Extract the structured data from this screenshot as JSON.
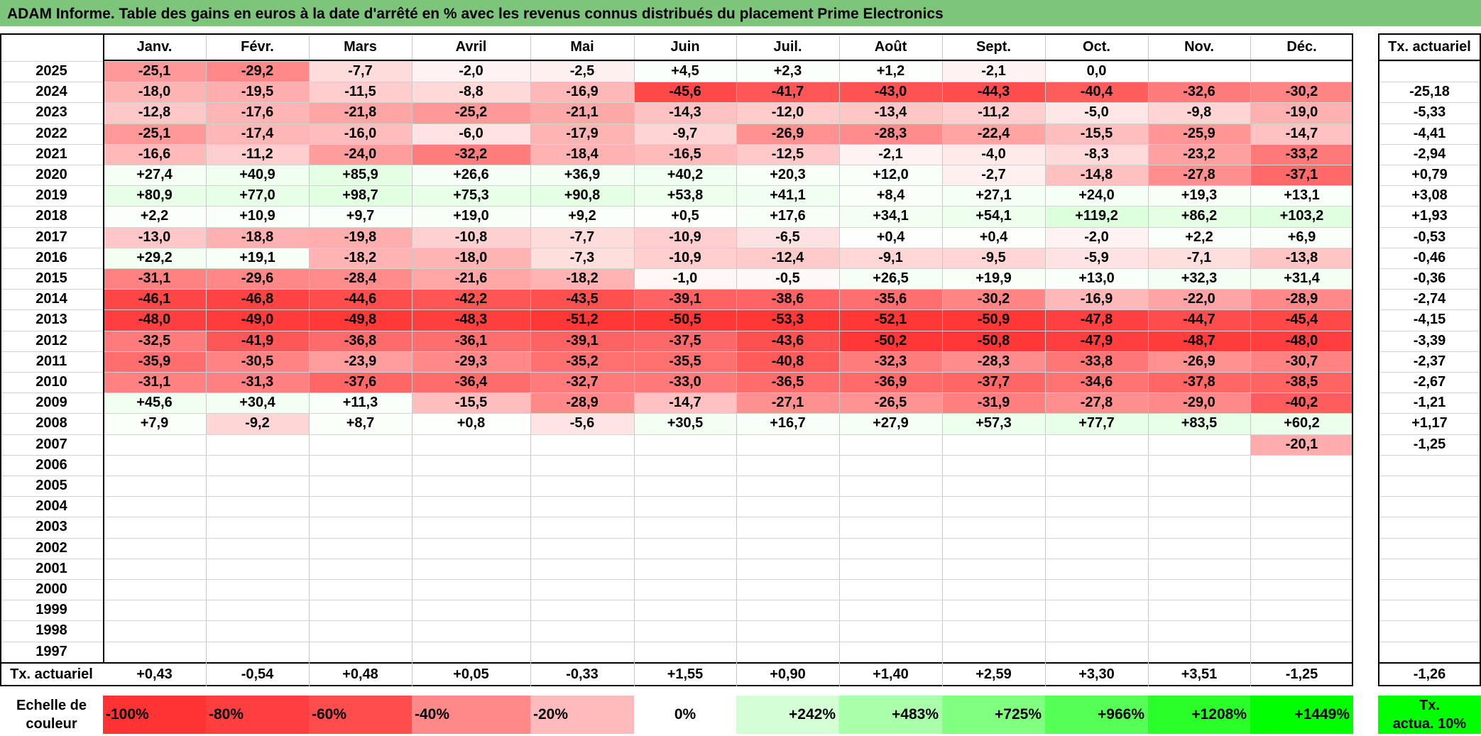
{
  "title": "ADAM Informe. Table des gains en euros à la date d'arrêté en % avec les revenus connus distribués du placement Prime Electronics",
  "months": [
    "Janv.",
    "Févr.",
    "Mars",
    "Avril",
    "Mai",
    "Juin",
    "Juil.",
    "Août",
    "Sept.",
    "Oct.",
    "Nov.",
    "Déc."
  ],
  "rate_header": "Tx. actuariel",
  "rows": [
    {
      "year": "2025",
      "values": [
        "-25,1",
        "-29,2",
        "-7,7",
        "-2,0",
        "-2,5",
        "+4,5",
        "+2,3",
        "+1,2",
        "-2,1",
        "0,0",
        "",
        ""
      ],
      "rate": ""
    },
    {
      "year": "2024",
      "values": [
        "-18,0",
        "-19,5",
        "-11,5",
        "-8,8",
        "-16,9",
        "-45,6",
        "-41,7",
        "-43,0",
        "-44,3",
        "-40,4",
        "-32,6",
        "-30,2"
      ],
      "rate": "-25,18"
    },
    {
      "year": "2023",
      "values": [
        "-12,8",
        "-17,6",
        "-21,8",
        "-25,2",
        "-21,1",
        "-14,3",
        "-12,0",
        "-13,4",
        "-11,2",
        "-5,0",
        "-9,8",
        "-19,0"
      ],
      "rate": "-5,33"
    },
    {
      "year": "2022",
      "values": [
        "-25,1",
        "-17,4",
        "-16,0",
        "-6,0",
        "-17,9",
        "-9,7",
        "-26,9",
        "-28,3",
        "-22,4",
        "-15,5",
        "-25,9",
        "-14,7"
      ],
      "rate": "-4,41"
    },
    {
      "year": "2021",
      "values": [
        "-16,6",
        "-11,2",
        "-24,0",
        "-32,2",
        "-18,4",
        "-16,5",
        "-12,5",
        "-2,1",
        "-4,0",
        "-8,3",
        "-23,2",
        "-33,2"
      ],
      "rate": "-2,94"
    },
    {
      "year": "2020",
      "values": [
        "+27,4",
        "+40,9",
        "+85,9",
        "+26,6",
        "+36,9",
        "+40,2",
        "+20,3",
        "+12,0",
        "-2,7",
        "-14,8",
        "-27,8",
        "-37,1"
      ],
      "rate": "+0,79"
    },
    {
      "year": "2019",
      "values": [
        "+80,9",
        "+77,0",
        "+98,7",
        "+75,3",
        "+90,8",
        "+53,8",
        "+41,1",
        "+8,4",
        "+27,1",
        "+24,0",
        "+19,3",
        "+13,1"
      ],
      "rate": "+3,08"
    },
    {
      "year": "2018",
      "values": [
        "+2,2",
        "+10,9",
        "+9,7",
        "+19,0",
        "+9,2",
        "+0,5",
        "+17,6",
        "+34,1",
        "+54,1",
        "+119,2",
        "+86,2",
        "+103,2"
      ],
      "rate": "+1,93"
    },
    {
      "year": "2017",
      "values": [
        "-13,0",
        "-18,8",
        "-19,8",
        "-10,8",
        "-7,7",
        "-10,9",
        "-6,5",
        "+0,4",
        "+0,4",
        "-2,0",
        "+2,2",
        "+6,9"
      ],
      "rate": "-0,53"
    },
    {
      "year": "2016",
      "values": [
        "+29,2",
        "+19,1",
        "-18,2",
        "-18,0",
        "-7,3",
        "-10,9",
        "-12,4",
        "-9,1",
        "-9,5",
        "-5,9",
        "-7,1",
        "-13,8"
      ],
      "rate": "-0,46"
    },
    {
      "year": "2015",
      "values": [
        "-31,1",
        "-29,6",
        "-28,4",
        "-21,6",
        "-18,2",
        "-1,0",
        "-0,5",
        "+26,5",
        "+19,9",
        "+13,0",
        "+32,3",
        "+31,4"
      ],
      "rate": "-0,36"
    },
    {
      "year": "2014",
      "values": [
        "-46,1",
        "-46,8",
        "-44,6",
        "-42,2",
        "-43,5",
        "-39,1",
        "-38,6",
        "-35,6",
        "-30,2",
        "-16,9",
        "-22,0",
        "-28,9"
      ],
      "rate": "-2,74"
    },
    {
      "year": "2013",
      "values": [
        "-48,0",
        "-49,0",
        "-49,8",
        "-48,3",
        "-51,2",
        "-50,5",
        "-53,3",
        "-52,1",
        "-50,9",
        "-47,8",
        "-44,7",
        "-45,4"
      ],
      "rate": "-4,15"
    },
    {
      "year": "2012",
      "values": [
        "-32,5",
        "-41,9",
        "-36,8",
        "-36,1",
        "-39,1",
        "-37,5",
        "-43,6",
        "-50,2",
        "-50,8",
        "-47,9",
        "-48,7",
        "-48,0"
      ],
      "rate": "-3,39"
    },
    {
      "year": "2011",
      "values": [
        "-35,9",
        "-30,5",
        "-23,9",
        "-29,3",
        "-35,2",
        "-35,5",
        "-40,8",
        "-32,3",
        "-28,3",
        "-33,8",
        "-26,9",
        "-30,7"
      ],
      "rate": "-2,37"
    },
    {
      "year": "2010",
      "values": [
        "-31,1",
        "-31,3",
        "-37,6",
        "-36,4",
        "-32,7",
        "-33,0",
        "-36,5",
        "-36,9",
        "-37,7",
        "-34,6",
        "-37,8",
        "-38,5"
      ],
      "rate": "-2,67"
    },
    {
      "year": "2009",
      "values": [
        "+45,6",
        "+30,4",
        "+11,3",
        "-15,5",
        "-28,9",
        "-14,7",
        "-27,1",
        "-26,5",
        "-31,9",
        "-27,8",
        "-29,0",
        "-40,2"
      ],
      "rate": "-1,21"
    },
    {
      "year": "2008",
      "values": [
        "+7,9",
        "-9,2",
        "+8,7",
        "+0,8",
        "-5,6",
        "+30,5",
        "+16,7",
        "+27,9",
        "+57,3",
        "+77,7",
        "+83,5",
        "+60,2"
      ],
      "rate": "+1,17"
    },
    {
      "year": "2007",
      "values": [
        "",
        "",
        "",
        "",
        "",
        "",
        "",
        "",
        "",
        "",
        "",
        "-20,1"
      ],
      "rate": "-1,25"
    },
    {
      "year": "2006",
      "values": [
        "",
        "",
        "",
        "",
        "",
        "",
        "",
        "",
        "",
        "",
        "",
        ""
      ],
      "rate": ""
    },
    {
      "year": "2005",
      "values": [
        "",
        "",
        "",
        "",
        "",
        "",
        "",
        "",
        "",
        "",
        "",
        ""
      ],
      "rate": ""
    },
    {
      "year": "2004",
      "values": [
        "",
        "",
        "",
        "",
        "",
        "",
        "",
        "",
        "",
        "",
        "",
        ""
      ],
      "rate": ""
    },
    {
      "year": "2003",
      "values": [
        "",
        "",
        "",
        "",
        "",
        "",
        "",
        "",
        "",
        "",
        "",
        ""
      ],
      "rate": ""
    },
    {
      "year": "2002",
      "values": [
        "",
        "",
        "",
        "",
        "",
        "",
        "",
        "",
        "",
        "",
        "",
        ""
      ],
      "rate": ""
    },
    {
      "year": "2001",
      "values": [
        "",
        "",
        "",
        "",
        "",
        "",
        "",
        "",
        "",
        "",
        "",
        ""
      ],
      "rate": ""
    },
    {
      "year": "2000",
      "values": [
        "",
        "",
        "",
        "",
        "",
        "",
        "",
        "",
        "",
        "",
        "",
        ""
      ],
      "rate": ""
    },
    {
      "year": "1999",
      "values": [
        "",
        "",
        "",
        "",
        "",
        "",
        "",
        "",
        "",
        "",
        "",
        ""
      ],
      "rate": ""
    },
    {
      "year": "1998",
      "values": [
        "",
        "",
        "",
        "",
        "",
        "",
        "",
        "",
        "",
        "",
        "",
        ""
      ],
      "rate": ""
    },
    {
      "year": "1997",
      "values": [
        "",
        "",
        "",
        "",
        "",
        "",
        "",
        "",
        "",
        "",
        "",
        ""
      ],
      "rate": ""
    }
  ],
  "summary": {
    "label": "Tx. actuariel",
    "values": [
      "+0,43",
      "-0,54",
      "+0,48",
      "+0,05",
      "-0,33",
      "+1,55",
      "+0,90",
      "+1,40",
      "+2,59",
      "+3,30",
      "+3,51",
      "-1,25"
    ],
    "rate": "-1,26"
  },
  "legend": {
    "label_line1": "Echelle de",
    "label_line2": "couleur",
    "steps": [
      {
        "label": "-100%",
        "color": "#ff3333"
      },
      {
        "label": "-80%",
        "color": "#ff3f3f"
      },
      {
        "label": "-60%",
        "color": "#ff4c4c"
      },
      {
        "label": "-40%",
        "color": "#ff8888"
      },
      {
        "label": "-20%",
        "color": "#ffbbbb"
      },
      {
        "label": "0%",
        "color": "#ffffff"
      },
      {
        "label": "+242%",
        "color": "#d4ffd4"
      },
      {
        "label": "+483%",
        "color": "#aaffaa"
      },
      {
        "label": "+725%",
        "color": "#80ff80"
      },
      {
        "label": "+966%",
        "color": "#55ff55"
      },
      {
        "label": "+1208%",
        "color": "#2aff2a"
      },
      {
        "label": "+1449%",
        "color": "#00ff00"
      }
    ],
    "rate_line1": "Tx.",
    "rate_line2": "actua. 10%",
    "rate_color": "#00ff00"
  },
  "colors": {
    "title_bar": "#7dc57b",
    "negative_strong": "#ff3333",
    "positive_light": "#f0fff0"
  }
}
